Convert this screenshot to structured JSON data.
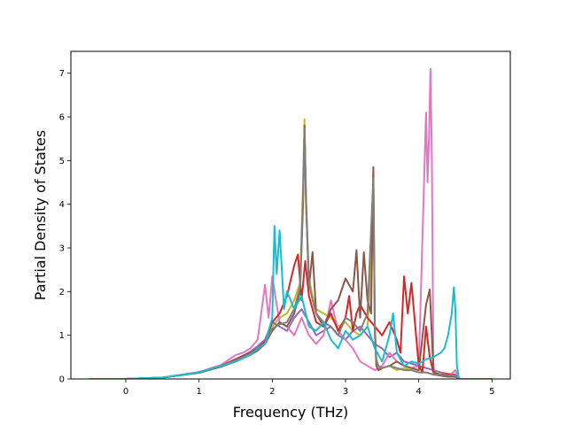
{
  "chart_data": {
    "type": "line",
    "title": "",
    "xlabel": "Frequency (THz)",
    "ylabel": "Partial Density of States",
    "xlim": [
      -0.75,
      5.25
    ],
    "ylim": [
      0,
      7.5
    ],
    "xticks": [
      0,
      1,
      2,
      3,
      4,
      5
    ],
    "yticks": [
      0,
      1,
      2,
      3,
      4,
      5,
      6,
      7
    ],
    "grid": false,
    "legend": "none",
    "series": [
      {
        "color": "#bcbd22",
        "x": [
          -0.5,
          0.0,
          0.5,
          1.0,
          1.3,
          1.5,
          1.7,
          1.8,
          1.9,
          2.0,
          2.1,
          2.2,
          2.3,
          2.38,
          2.42,
          2.44,
          2.46,
          2.5,
          2.55,
          2.6,
          2.7,
          2.8,
          2.9,
          3.0,
          3.1,
          3.2,
          3.3,
          3.35,
          3.38,
          3.4,
          3.42,
          3.45,
          3.5,
          3.6,
          3.7,
          3.8,
          3.9,
          4.0,
          4.1,
          4.2,
          4.3,
          4.4,
          4.5,
          4.55,
          5.0
        ],
        "y": [
          0,
          0,
          0.03,
          0.15,
          0.3,
          0.45,
          0.6,
          0.7,
          0.85,
          1.2,
          1.4,
          1.5,
          1.8,
          2.2,
          4.5,
          5.95,
          4.2,
          2.3,
          1.9,
          1.6,
          1.5,
          1.4,
          1.2,
          1.3,
          1.1,
          1.0,
          1.2,
          2.5,
          4.7,
          1.2,
          0.5,
          0.3,
          0.25,
          0.3,
          0.2,
          0.25,
          0.2,
          0.15,
          0.15,
          0.1,
          0.1,
          0.1,
          0.08,
          0,
          0
        ]
      },
      {
        "color": "#9467bd",
        "x": [
          -0.5,
          0.0,
          0.5,
          1.0,
          1.3,
          1.5,
          1.7,
          1.8,
          1.9,
          2.0,
          2.1,
          2.2,
          2.3,
          2.4,
          2.5,
          2.6,
          2.7,
          2.8,
          2.9,
          3.0,
          3.1,
          3.2,
          3.3,
          3.4,
          3.5,
          3.6,
          3.7,
          3.8,
          3.9,
          4.0,
          4.1,
          4.2,
          4.3,
          4.4,
          4.5,
          4.55,
          5.0
        ],
        "y": [
          0,
          0,
          0.03,
          0.15,
          0.3,
          0.45,
          0.62,
          0.75,
          0.9,
          1.3,
          1.2,
          1.1,
          1.4,
          1.6,
          1.3,
          1.0,
          1.1,
          1.2,
          1.0,
          0.9,
          1.1,
          1.2,
          1.0,
          0.8,
          0.7,
          0.5,
          0.6,
          0.4,
          0.35,
          0.3,
          0.25,
          0.2,
          0.15,
          0.12,
          0.1,
          0,
          0
        ]
      },
      {
        "color": "#e377c2",
        "x": [
          -0.5,
          0.0,
          0.5,
          1.0,
          1.3,
          1.5,
          1.6,
          1.7,
          1.8,
          1.9,
          1.95,
          2.0,
          2.05,
          2.1,
          2.2,
          2.3,
          2.4,
          2.5,
          2.6,
          2.7,
          2.8,
          2.9,
          3.0,
          3.1,
          3.2,
          3.3,
          3.4,
          3.5,
          3.6,
          3.7,
          3.8,
          3.9,
          4.0,
          4.1,
          4.12,
          4.14,
          4.16,
          4.18,
          4.2,
          4.22,
          4.3,
          4.4,
          4.5,
          4.55,
          5.0
        ],
        "y": [
          0,
          0,
          0.03,
          0.16,
          0.32,
          0.55,
          0.6,
          0.7,
          0.9,
          2.15,
          1.4,
          2.35,
          1.8,
          1.3,
          1.2,
          1.0,
          1.4,
          1.0,
          0.8,
          1.0,
          1.8,
          1.1,
          0.9,
          0.7,
          0.4,
          0.3,
          0.2,
          0.3,
          0.6,
          0.4,
          0.3,
          0.25,
          0.3,
          6.1,
          4.5,
          5.5,
          7.1,
          5.0,
          0.3,
          0.1,
          0.08,
          0.05,
          0.2,
          0,
          0
        ]
      },
      {
        "color": "#d62728",
        "x": [
          -0.5,
          0.0,
          0.5,
          1.0,
          1.3,
          1.5,
          1.7,
          1.8,
          1.9,
          2.0,
          2.1,
          2.2,
          2.3,
          2.35,
          2.4,
          2.45,
          2.5,
          2.6,
          2.7,
          2.8,
          2.9,
          3.0,
          3.05,
          3.1,
          3.15,
          3.2,
          3.3,
          3.4,
          3.5,
          3.6,
          3.7,
          3.75,
          3.8,
          3.85,
          3.9,
          4.0,
          4.05,
          4.1,
          4.15,
          4.2,
          4.3,
          4.4,
          4.5,
          4.55,
          5.0
        ],
        "y": [
          0,
          0,
          0.03,
          0.15,
          0.3,
          0.45,
          0.6,
          0.7,
          0.85,
          1.3,
          1.5,
          1.9,
          2.6,
          2.85,
          1.8,
          2.7,
          1.9,
          1.3,
          1.2,
          1.5,
          1.1,
          1.4,
          1.9,
          1.1,
          1.5,
          1.7,
          1.4,
          1.2,
          1.0,
          1.3,
          0.9,
          0.6,
          2.35,
          1.5,
          2.2,
          0.3,
          0.15,
          1.2,
          0.5,
          0.15,
          0.1,
          0.1,
          0.08,
          0,
          0
        ]
      },
      {
        "color": "#8c564b",
        "x": [
          -0.5,
          0.0,
          0.5,
          1.0,
          1.3,
          1.5,
          1.7,
          1.8,
          1.9,
          2.0,
          2.1,
          2.2,
          2.3,
          2.38,
          2.42,
          2.44,
          2.46,
          2.5,
          2.55,
          2.6,
          2.7,
          2.8,
          2.9,
          3.0,
          3.1,
          3.15,
          3.2,
          3.25,
          3.3,
          3.35,
          3.38,
          3.4,
          3.42,
          3.45,
          3.5,
          3.6,
          3.7,
          3.8,
          3.9,
          4.0,
          4.1,
          4.15,
          4.2,
          4.22,
          4.3,
          4.4,
          4.5,
          4.55,
          5.0
        ],
        "y": [
          0,
          0,
          0.03,
          0.14,
          0.28,
          0.4,
          0.55,
          0.65,
          0.8,
          1.1,
          1.3,
          1.2,
          1.5,
          2.0,
          4.0,
          5.8,
          4.1,
          2.1,
          2.9,
          1.5,
          1.2,
          1.6,
          1.8,
          2.3,
          2.0,
          2.95,
          1.4,
          2.9,
          1.8,
          1.5,
          4.85,
          1.2,
          0.3,
          0.2,
          0.25,
          0.3,
          0.4,
          0.3,
          0.25,
          0.2,
          1.7,
          2.05,
          0.2,
          0.1,
          0.08,
          0.05,
          0.05,
          0,
          0
        ]
      },
      {
        "color": "#7f7f7f",
        "x": [
          -0.5,
          0.0,
          0.5,
          1.0,
          1.3,
          1.5,
          1.7,
          1.8,
          1.9,
          2.0,
          2.1,
          2.2,
          2.3,
          2.38,
          2.42,
          2.44,
          2.46,
          2.5,
          2.55,
          2.6,
          2.7,
          2.8,
          2.9,
          3.0,
          3.1,
          3.2,
          3.3,
          3.38,
          3.4,
          3.42,
          3.45,
          3.5,
          3.6,
          3.7,
          3.8,
          3.9,
          4.0,
          4.1,
          4.2,
          4.3,
          4.4,
          4.5,
          4.55,
          5.0
        ],
        "y": [
          0,
          0,
          0.03,
          0.15,
          0.3,
          0.42,
          0.58,
          0.68,
          0.82,
          1.15,
          1.25,
          1.3,
          1.6,
          2.1,
          4.2,
          5.75,
          4.0,
          2.2,
          1.8,
          1.5,
          1.3,
          1.2,
          1.0,
          1.4,
          1.3,
          1.1,
          1.5,
          4.6,
          1.0,
          0.4,
          0.3,
          0.25,
          0.3,
          0.25,
          0.2,
          0.2,
          0.15,
          0.15,
          0.1,
          0.1,
          0.08,
          0.08,
          0,
          0
        ]
      },
      {
        "color": "#17becf",
        "x": [
          -0.5,
          0.0,
          0.5,
          1.0,
          1.3,
          1.5,
          1.7,
          1.8,
          1.9,
          2.0,
          2.03,
          2.06,
          2.1,
          2.13,
          2.16,
          2.2,
          2.25,
          2.3,
          2.4,
          2.5,
          2.6,
          2.7,
          2.8,
          2.9,
          3.0,
          3.1,
          3.2,
          3.3,
          3.4,
          3.5,
          3.6,
          3.65,
          3.7,
          3.8,
          3.9,
          4.0,
          4.1,
          4.2,
          4.3,
          4.35,
          4.4,
          4.45,
          4.48,
          4.5,
          4.52,
          4.55,
          5.0
        ],
        "y": [
          0,
          0,
          0.03,
          0.15,
          0.3,
          0.4,
          0.55,
          0.7,
          0.8,
          1.4,
          3.5,
          2.4,
          3.4,
          2.5,
          1.6,
          2.0,
          1.8,
          1.6,
          1.9,
          1.2,
          1.1,
          1.3,
          0.9,
          0.7,
          1.1,
          0.9,
          1.0,
          1.2,
          0.7,
          0.4,
          1.0,
          1.5,
          0.6,
          0.3,
          0.4,
          0.35,
          0.45,
          0.5,
          0.6,
          0.7,
          1.0,
          1.5,
          2.1,
          1.6,
          0.3,
          0,
          0
        ]
      }
    ]
  }
}
